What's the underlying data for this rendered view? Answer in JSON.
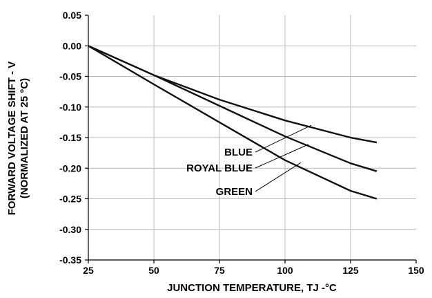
{
  "chart_data": {
    "type": "line",
    "xlabel": "JUNCTION TEMPERATURE, TJ -°C",
    "ylabel_line1": "FORWARD VOLTAGE SHIFT - V",
    "ylabel_line2": "(NORMALIZED AT 25 °C)",
    "xlim": [
      25,
      150
    ],
    "ylim": [
      -0.35,
      0.05
    ],
    "x_ticks": [
      25,
      50,
      75,
      100,
      125,
      150
    ],
    "y_ticks": [
      0.05,
      0.0,
      -0.05,
      -0.1,
      -0.15,
      -0.2,
      -0.25,
      -0.3,
      -0.35
    ],
    "x_tick_labels": [
      "25",
      "50",
      "75",
      "100",
      "125",
      "150"
    ],
    "y_tick_labels": [
      "0.05",
      "0.00",
      "-0.05",
      "-0.10",
      "-0.15",
      "-0.20",
      "-0.25",
      "-0.30",
      "-0.35"
    ],
    "grid": true,
    "series": [
      {
        "name": "BLUE",
        "x": [
          25,
          50,
          75,
          100,
          125,
          135
        ],
        "y": [
          0.0,
          -0.048,
          -0.088,
          -0.122,
          -0.15,
          -0.158
        ]
      },
      {
        "name": "ROYAL BLUE",
        "x": [
          25,
          50,
          75,
          100,
          125,
          135
        ],
        "y": [
          0.0,
          -0.048,
          -0.098,
          -0.148,
          -0.192,
          -0.205
        ]
      },
      {
        "name": "GREEN",
        "x": [
          25,
          50,
          75,
          100,
          125,
          135
        ],
        "y": [
          0.0,
          -0.063,
          -0.125,
          -0.187,
          -0.237,
          -0.25
        ]
      }
    ],
    "annotations": [
      {
        "text": "BLUE",
        "series": "BLUE",
        "x": 110,
        "y": -0.13
      },
      {
        "text": "ROYAL BLUE",
        "series": "ROYAL BLUE",
        "x": 109,
        "y": -0.161
      },
      {
        "text": "GREEN",
        "series": "GREEN",
        "x": 106,
        "y": -0.191
      }
    ]
  }
}
